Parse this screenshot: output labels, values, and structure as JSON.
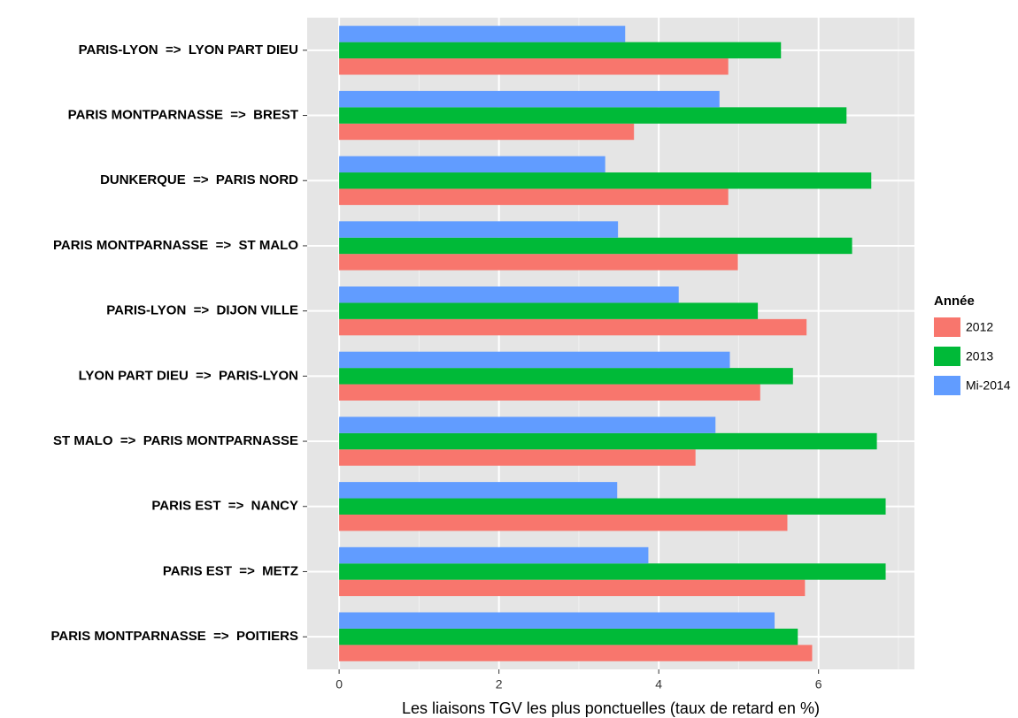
{
  "chart_data": {
    "type": "bar",
    "orientation": "horizontal",
    "x_label": "Les liaisons TGV les plus ponctuelles (taux de retard en %)",
    "legend_title": "Année",
    "legend_position": "right",
    "grid": true,
    "categories": [
      "PARIS-LYON  =>  LYON PART DIEU",
      "PARIS MONTPARNASSE  =>  BREST",
      "DUNKERQUE  =>  PARIS NORD",
      "PARIS MONTPARNASSE  =>  ST MALO",
      "PARIS-LYON  =>  DIJON VILLE",
      "LYON PART DIEU  =>  PARIS-LYON",
      "ST MALO  =>  PARIS MONTPARNASSE",
      "PARIS EST  =>  NANCY",
      "PARIS EST  =>  METZ",
      "PARIS MONTPARNASSE  =>  POITIERS"
    ],
    "series": [
      {
        "name": "2012",
        "color": "#F8766D",
        "values": [
          4.87,
          3.69,
          4.87,
          4.99,
          5.85,
          5.27,
          4.46,
          5.61,
          5.83,
          5.92
        ]
      },
      {
        "name": "2013",
        "color": "#00BA38",
        "values": [
          5.53,
          6.35,
          6.66,
          6.42,
          5.24,
          5.68,
          6.73,
          6.84,
          6.84,
          5.74
        ]
      },
      {
        "name": "Mi-2014",
        "color": "#619CFF",
        "values": [
          3.58,
          4.76,
          3.33,
          3.49,
          4.25,
          4.89,
          4.71,
          3.48,
          3.87,
          5.45
        ]
      }
    ],
    "xlim": [
      -0.4,
      7.2
    ],
    "xticks": [
      0,
      2,
      4,
      6
    ]
  }
}
